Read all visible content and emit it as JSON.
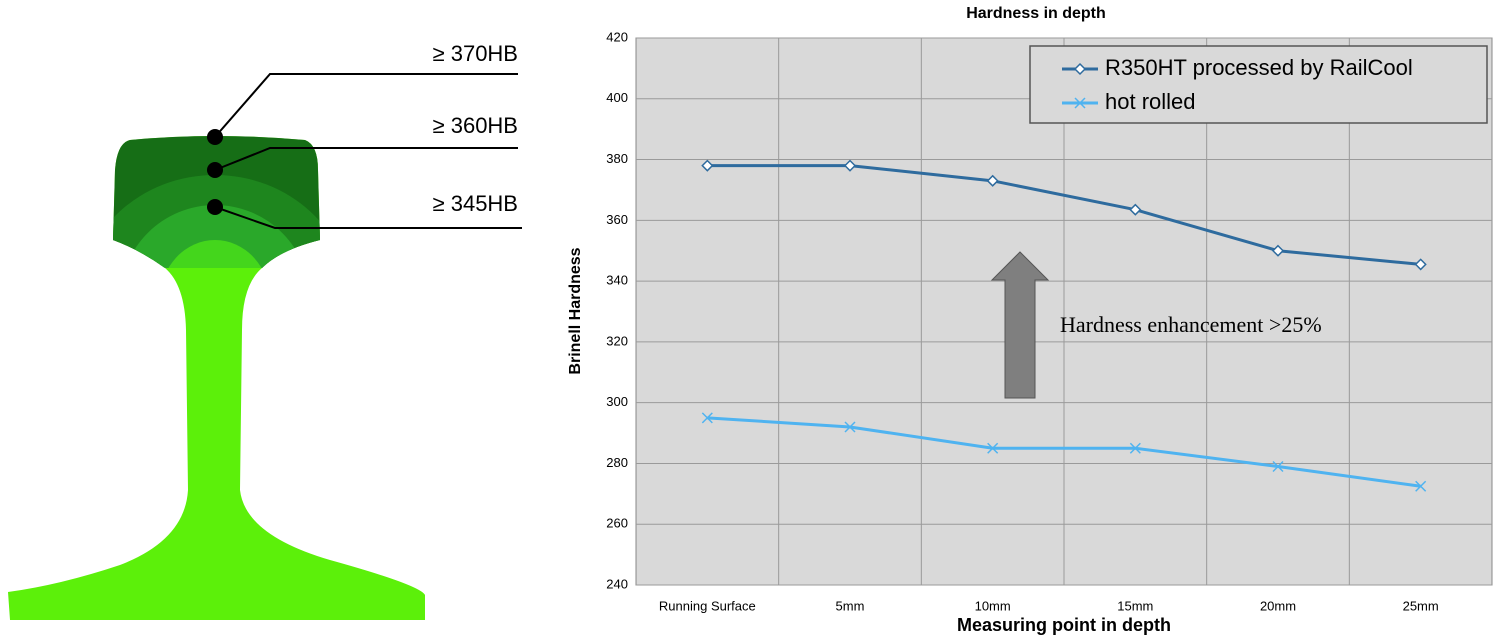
{
  "diagram": {
    "labels": [
      "≥ 370HB",
      "≥ 360HB",
      "≥ 345HB"
    ]
  },
  "chart_data": {
    "type": "line",
    "title": "Hardness in depth",
    "x_label": "Measuring point in depth",
    "y_label": "Brinell Hardness",
    "categories": [
      "Running Surface",
      "5mm",
      "10mm",
      "15mm",
      "20mm",
      "25mm"
    ],
    "series": [
      {
        "name": "R350HT processed by RailCool",
        "color": "#2e6b9e",
        "marker": "diamond",
        "values": [
          378,
          378,
          373,
          363.5,
          350,
          345.5
        ]
      },
      {
        "name": "hot rolled",
        "color": "#4fb3f0",
        "marker": "x",
        "values": [
          295,
          292,
          285,
          285,
          279,
          272.5
        ]
      }
    ],
    "ylim": [
      240,
      420
    ],
    "yticks": [
      240,
      260,
      280,
      300,
      320,
      340,
      360,
      380,
      400,
      420
    ],
    "grid": true,
    "legend": "upper right",
    "annotation": "Hardness enhancement >25%"
  }
}
